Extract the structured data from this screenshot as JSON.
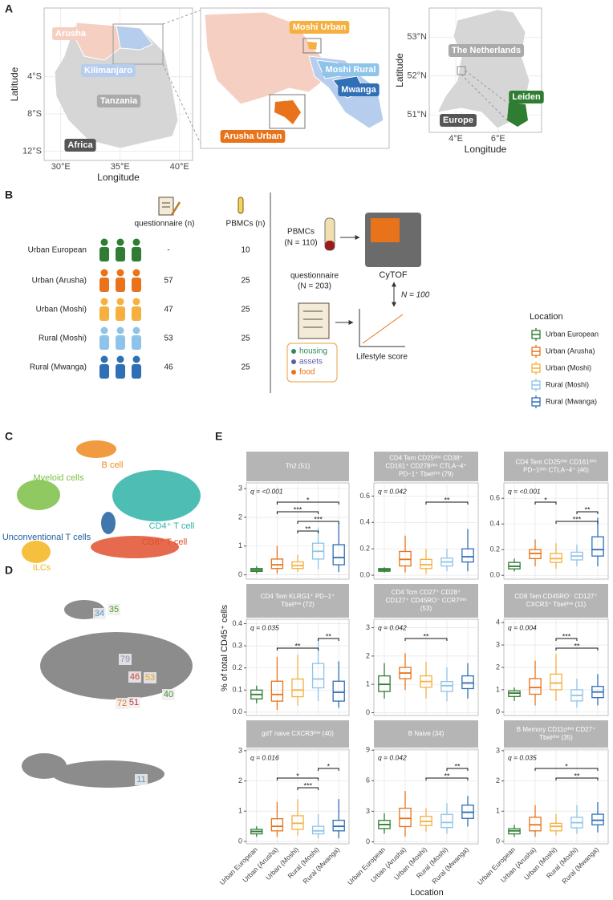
{
  "panel_labels": [
    "A",
    "B",
    "C",
    "D",
    "E"
  ],
  "panel_a": {
    "tanzania_map": {
      "xlabel": "Longitude",
      "ylabel": "Latitude",
      "xlim": [
        28.6,
        41.1
      ],
      "ylim": [
        -13,
        3.4
      ],
      "xticks": [
        {
          "value": 30,
          "label": "30°E"
        },
        {
          "value": 35,
          "label": "35°E"
        },
        {
          "value": 40,
          "label": "40°E"
        }
      ],
      "yticks": [
        {
          "value": -4,
          "label": "4°S"
        },
        {
          "value": -8,
          "label": "8°S"
        },
        {
          "value": -12,
          "label": "12°S"
        }
      ],
      "labels": [
        "Arusha",
        "Kilimanjaro",
        "Tanzania",
        "Africa"
      ]
    },
    "region_map": {
      "labels": [
        "Moshi Urban",
        "Moshi Rural",
        "Mwanga",
        "Arusha Urban"
      ]
    },
    "netherlands_map": {
      "xlabel": "Longitude",
      "ylabel": "Latitude",
      "xlim": [
        2.75,
        8.05
      ],
      "ylim": [
        50.55,
        53.75
      ],
      "xticks": [
        {
          "value": 4,
          "label": "4°E"
        },
        {
          "value": 6,
          "label": "6°E"
        }
      ],
      "yticks": [
        {
          "value": 51,
          "label": "51°N"
        },
        {
          "value": 52,
          "label": "52°N"
        },
        {
          "value": 53,
          "label": "53°N"
        }
      ],
      "labels": [
        "The Netherlands",
        "Leiden",
        "Europe"
      ]
    }
  },
  "panel_b": {
    "header_questionnaire": "questionnaire (n)",
    "header_pbmcs": "PBMCs (n)",
    "groups": [
      {
        "name": "Urban European",
        "color": "#2e7d32",
        "questionnaire": "-",
        "pbmcs": 10
      },
      {
        "name": "Urban (Arusha)",
        "color": "#e8731a",
        "questionnaire": 57,
        "pbmcs": 25
      },
      {
        "name": "Urban (Moshi)",
        "color": "#f5b040",
        "questionnaire": 47,
        "pbmcs": 25
      },
      {
        "name": "Rural (Moshi)",
        "color": "#8ec4ea",
        "questionnaire": 53,
        "pbmcs": 25
      },
      {
        "name": "Rural (Mwanga)",
        "color": "#2f6fb5",
        "questionnaire": 46,
        "pbmcs": 25
      }
    ],
    "pbmcs_lines": [
      "PBMCs",
      "(N = 110)"
    ],
    "cytof": "CyTOF",
    "link": "N = 100",
    "questionnaire_lines": [
      "questionnaire",
      "(N = 203)"
    ],
    "items": [
      {
        "text": "housing",
        "color": "#2e8b57"
      },
      {
        "text": "assets",
        "color": "#5b5ea6"
      },
      {
        "text": "food",
        "color": "#e8731a"
      }
    ],
    "lifestyle": "Lifestyle score"
  },
  "panel_c": {
    "clusters": [
      {
        "label": "B cell",
        "color": "#ef8a1e"
      },
      {
        "label": "Myeloid cells",
        "color": "#7cbf45"
      },
      {
        "label": "CD4⁺ T cell",
        "color": "#2fb3a8"
      },
      {
        "label": "Unconventional T cells",
        "color": "#1f5f9e"
      },
      {
        "label": "ILCs",
        "color": "#f2b51c"
      },
      {
        "label": "CD8⁺ T cell",
        "color": "#e0502f"
      }
    ]
  },
  "panel_d": {
    "labels": [
      {
        "text": "34",
        "color": "#5a9bd3"
      },
      {
        "text": "35",
        "color": "#4a9a2a"
      },
      {
        "text": "79",
        "color": "#9b86c0"
      },
      {
        "text": "46",
        "color": "#d9403a"
      },
      {
        "text": "53",
        "color": "#f0a020"
      },
      {
        "text": "40",
        "color": "#3a8a2a"
      },
      {
        "text": "72",
        "color": "#e8731a"
      },
      {
        "text": "51",
        "color": "#c8302a"
      },
      {
        "text": "11",
        "color": "#5a9bd3"
      }
    ]
  },
  "chart_data": {
    "type": "box",
    "legend_title": "Location",
    "categories": [
      "Urban European",
      "Urban (Arusha)",
      "Urban (Moshi)",
      "Rural (Moshi)",
      "Rural (Mwanga)"
    ],
    "colors": [
      "#2e7d32",
      "#e8731a",
      "#f5b040",
      "#8ec4ea",
      "#2f6fb5"
    ],
    "ylabel": "% of total CD45⁺ cells",
    "xlabel": "Location",
    "panels": [
      {
        "title_lines": [
          "Th2 (51)"
        ],
        "q_label": "q = <0.001",
        "ylim": [
          -0.15,
          3.2
        ],
        "yticks": [
          0,
          1,
          2,
          3
        ],
        "boxes": [
          [
            0.05,
            0.12,
            0.17,
            0.22,
            0.3
          ],
          [
            0.05,
            0.22,
            0.35,
            0.55,
            1.0
          ],
          [
            0.1,
            0.22,
            0.32,
            0.45,
            0.7
          ],
          [
            0.2,
            0.55,
            0.82,
            1.1,
            1.65
          ],
          [
            0.1,
            0.35,
            0.6,
            1.05,
            1.8
          ]
        ],
        "brackets": [
          {
            "groups": [
              1,
              4
            ],
            "label": "*"
          },
          {
            "groups": [
              1,
              3
            ],
            "label": "***"
          },
          {
            "groups": [
              2,
              4
            ],
            "label": "***"
          },
          {
            "groups": [
              2,
              3
            ],
            "label": "**"
          }
        ]
      },
      {
        "title_lines": [
          "CD4 Tem CD25ᵈⁱᵐ CD38⁺",
          "CD161⁺ CD278ᵈⁱᵐ CTLA−4⁺",
          "PD−1⁺ Tbetᵈⁱᵐ (79)"
        ],
        "q_label": "q = 0.042",
        "ylim": [
          -0.03,
          0.7
        ],
        "yticks": [
          {
            "value": 0,
            "label": "0.0"
          },
          0.2,
          0.4,
          0.6
        ],
        "boxes": [
          [
            0.02,
            0.03,
            0.04,
            0.05,
            0.06
          ],
          [
            0.02,
            0.07,
            0.12,
            0.18,
            0.3
          ],
          [
            0.01,
            0.05,
            0.08,
            0.12,
            0.2
          ],
          [
            0.03,
            0.07,
            0.1,
            0.13,
            0.2
          ],
          [
            0.03,
            0.1,
            0.14,
            0.2,
            0.35
          ]
        ],
        "brackets": [
          {
            "groups": [
              2,
              4
            ],
            "label": "**"
          }
        ]
      },
      {
        "title_lines": [
          "CD4 Tem CD25ᵈⁱᵐ CD161ᵈⁱᵐ",
          "PD−1ᵈⁱᵐ CTLA−4⁺ (46)"
        ],
        "q_label": "q = <0.001",
        "ylim": [
          -0.03,
          0.72
        ],
        "yticks": [
          {
            "value": 0,
            "label": "0.0"
          },
          0.2,
          0.4,
          0.6
        ],
        "boxes": [
          [
            0.03,
            0.05,
            0.07,
            0.1,
            0.13
          ],
          [
            0.07,
            0.13,
            0.17,
            0.2,
            0.28
          ],
          [
            0.05,
            0.1,
            0.13,
            0.17,
            0.25
          ],
          [
            0.07,
            0.12,
            0.15,
            0.18,
            0.24
          ],
          [
            0.07,
            0.15,
            0.2,
            0.3,
            0.45
          ]
        ],
        "brackets": [
          {
            "groups": [
              1,
              2
            ],
            "label": "*"
          },
          {
            "groups": [
              3,
              4
            ],
            "label": "**"
          },
          {
            "groups": [
              2,
              4
            ],
            "label": "***"
          }
        ]
      },
      {
        "title_lines": [
          "CD4 Tem KLRG1⁺ PD−1⁺",
          "Tbetᵈⁱᵐ (72)"
        ],
        "q_label": "q = 0.035",
        "ylim": [
          -0.015,
          0.42
        ],
        "yticks": [
          {
            "value": 0,
            "label": "0.0"
          },
          0.1,
          0.2,
          0.3,
          0.4
        ],
        "boxes": [
          [
            0.04,
            0.06,
            0.08,
            0.1,
            0.12
          ],
          [
            0.01,
            0.05,
            0.08,
            0.14,
            0.25
          ],
          [
            0.03,
            0.07,
            0.1,
            0.15,
            0.26
          ],
          [
            0.05,
            0.11,
            0.15,
            0.22,
            0.33
          ],
          [
            0.02,
            0.05,
            0.09,
            0.14,
            0.23
          ]
        ],
        "brackets": [
          {
            "groups": [
              3,
              4
            ],
            "label": "**"
          },
          {
            "groups": [
              1,
              3
            ],
            "label": "**"
          }
        ]
      },
      {
        "title_lines": [
          "CD4 Tcm CD27⁺ CD28⁺",
          "CD127⁺ CD45RO⁻ CCR7ᵈⁱᵐ",
          "(53)"
        ],
        "q_label": "q = 0.042",
        "ylim": [
          -0.1,
          3.3
        ],
        "yticks": [
          0,
          1,
          2,
          3
        ],
        "boxes": [
          [
            0.5,
            0.75,
            1.0,
            1.3,
            1.75
          ],
          [
            0.8,
            1.2,
            1.4,
            1.6,
            2.1
          ],
          [
            0.5,
            0.9,
            1.1,
            1.3,
            1.8
          ],
          [
            0.4,
            0.75,
            0.95,
            1.1,
            1.6
          ],
          [
            0.5,
            0.85,
            1.05,
            1.3,
            1.75
          ]
        ],
        "brackets": [
          {
            "groups": [
              1,
              3
            ],
            "label": "**"
          }
        ]
      },
      {
        "title_lines": [
          "CD8 Tem CD45RO⁻ CD127⁺",
          "CXCR3⁺ Tbetᵈⁱᵐ (11)"
        ],
        "q_label": "q = 0.004",
        "ylim": [
          -0.15,
          4.15
        ],
        "yticks": [
          0,
          1,
          2,
          3,
          4
        ],
        "boxes": [
          [
            0.5,
            0.7,
            0.85,
            0.95,
            1.1
          ],
          [
            0.3,
            0.8,
            1.1,
            1.5,
            2.3
          ],
          [
            0.5,
            1.0,
            1.3,
            1.7,
            2.6
          ],
          [
            0.2,
            0.5,
            0.75,
            1.0,
            1.5
          ],
          [
            0.3,
            0.65,
            0.9,
            1.15,
            1.7
          ]
        ],
        "brackets": [
          {
            "groups": [
              2,
              3
            ],
            "label": "***"
          },
          {
            "groups": [
              2,
              4
            ],
            "label": "**"
          }
        ]
      },
      {
        "title_lines": [
          "gdT naive CXCR3ᵈⁱᵐ (40)"
        ],
        "q_label": "q = 0.016",
        "ylim": [
          -0.08,
          3.05
        ],
        "yticks": [
          0,
          1,
          2,
          3
        ],
        "boxes": [
          [
            0.15,
            0.25,
            0.33,
            0.4,
            0.5
          ],
          [
            0.15,
            0.35,
            0.5,
            0.75,
            1.3
          ],
          [
            0.2,
            0.4,
            0.6,
            0.85,
            1.4
          ],
          [
            0.1,
            0.25,
            0.35,
            0.5,
            0.9
          ],
          [
            0.1,
            0.35,
            0.5,
            0.7,
            1.4
          ]
        ],
        "brackets": [
          {
            "groups": [
              3,
              4
            ],
            "label": "*"
          },
          {
            "groups": [
              1,
              3
            ],
            "label": "*"
          },
          {
            "groups": [
              2,
              3
            ],
            "label": "***"
          }
        ]
      },
      {
        "title_lines": [
          "B Naive (34)"
        ],
        "q_label": "q = 0.042",
        "ylim": [
          -0.2,
          9.1
        ],
        "yticks": [
          0,
          3,
          6,
          9
        ],
        "boxes": [
          [
            0.8,
            1.3,
            1.7,
            2.1,
            2.8
          ],
          [
            0.5,
            1.5,
            2.3,
            3.3,
            5.0
          ],
          [
            1.0,
            1.6,
            2.0,
            2.5,
            3.3
          ],
          [
            0.8,
            1.4,
            1.9,
            2.7,
            3.8
          ],
          [
            1.5,
            2.3,
            2.9,
            3.6,
            4.5
          ]
        ],
        "brackets": [
          {
            "groups": [
              3,
              4
            ],
            "label": "**"
          },
          {
            "groups": [
              2,
              4
            ],
            "label": "**"
          }
        ]
      },
      {
        "title_lines": [
          "B Memory CD11cᵈⁱᵐ CD27⁺",
          "Tbetᵈⁱᵐ (35)"
        ],
        "q_label": "q = 0.035",
        "ylim": [
          -0.08,
          3.05
        ],
        "yticks": [
          0,
          1,
          2,
          3
        ],
        "boxes": [
          [
            0.15,
            0.25,
            0.35,
            0.42,
            0.55
          ],
          [
            0.15,
            0.35,
            0.55,
            0.8,
            1.2
          ],
          [
            0.2,
            0.35,
            0.5,
            0.6,
            0.9
          ],
          [
            0.25,
            0.45,
            0.62,
            0.8,
            1.2
          ],
          [
            0.3,
            0.55,
            0.7,
            0.9,
            1.3
          ]
        ],
        "brackets": [
          {
            "groups": [
              1,
              4
            ],
            "label": "*"
          },
          {
            "groups": [
              2,
              4
            ],
            "label": "**"
          }
        ]
      }
    ]
  }
}
